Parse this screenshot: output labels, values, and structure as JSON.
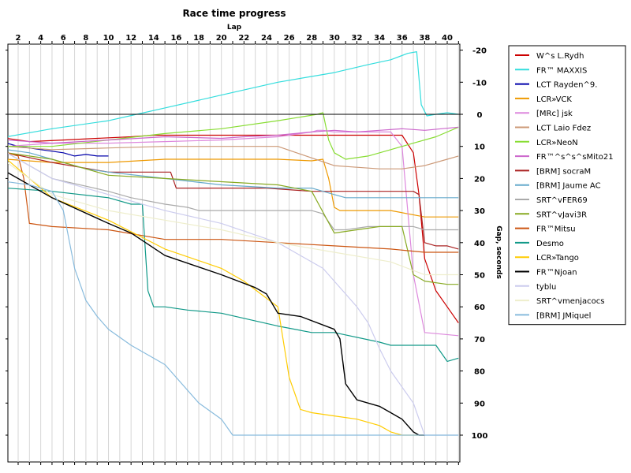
{
  "chart_data": {
    "type": "line",
    "title": "Race time progress",
    "xlabel": "Lap",
    "ylabel": "Gap, seconds",
    "xlim": [
      1,
      41
    ],
    "ylim": [
      -22,
      105
    ],
    "x_ticks": [
      2,
      4,
      6,
      8,
      10,
      12,
      14,
      16,
      18,
      20,
      22,
      24,
      26,
      28,
      30,
      32,
      34,
      36,
      38,
      40
    ],
    "y_ticks": [
      -20,
      -10,
      0,
      10,
      20,
      30,
      40,
      50,
      60,
      70,
      80,
      90,
      100
    ],
    "y_tick_labels": [
      "-20",
      "-10",
      "0",
      "10",
      "20",
      "30",
      "40",
      "50",
      "60",
      "70",
      "80",
      "90",
      "100"
    ],
    "y_axis_inverted": true,
    "x_axis_position": "top",
    "y_axis_position": "right",
    "grid": true,
    "legend_position": "right",
    "series": [
      {
        "name": "W^s L.Rydh",
        "color": "#cc0000",
        "x": [
          1,
          3,
          6,
          9,
          12,
          14,
          15,
          16,
          18,
          20,
          24,
          28,
          32,
          36,
          37,
          37.5,
          38,
          39,
          40,
          41
        ],
        "y": [
          7.5,
          8.5,
          8,
          7.5,
          7,
          6.5,
          6.5,
          6.5,
          6.5,
          6.5,
          6.5,
          6.5,
          6.5,
          6.5,
          12,
          25,
          45,
          55,
          60,
          65
        ]
      },
      {
        "name": "FR™ MAXXIS",
        "color": "#33dddd",
        "x": [
          1,
          5,
          10,
          12.5,
          15,
          20,
          25,
          30,
          33,
          35,
          36.5,
          37.3,
          37.7,
          38.2,
          39,
          40,
          41
        ],
        "y": [
          7,
          4.5,
          2,
          0,
          -2,
          -6,
          -10,
          -13,
          -15.5,
          -17,
          -19,
          -19.5,
          -3,
          0.5,
          0,
          -0.5,
          0
        ]
      },
      {
        "name": "LCT Rayden^9.",
        "color": "#0000aa",
        "x": [
          1,
          2,
          3,
          4,
          5,
          6,
          7,
          8,
          9,
          10
        ],
        "y": [
          9,
          10,
          10.5,
          11,
          11.5,
          12,
          13,
          12.5,
          13,
          13
        ]
      },
      {
        "name": "LCR»VCK",
        "color": "#ee9900",
        "x": [
          1,
          5,
          10,
          15,
          20,
          25,
          28,
          29,
          29.5,
          30,
          30.5,
          31,
          35,
          38,
          41
        ],
        "y": [
          14,
          15,
          15,
          14,
          14,
          14,
          14.5,
          14,
          20,
          29,
          30,
          30,
          30,
          32,
          32
        ]
      },
      {
        "name": "[MRc] jsk",
        "color": "#dd88dd",
        "x": [
          1,
          5,
          10,
          15,
          20,
          25,
          28,
          28.5,
          29,
          30,
          35,
          36,
          37,
          38,
          41
        ],
        "y": [
          10,
          9,
          9,
          8.5,
          8,
          7,
          5.5,
          5,
          5,
          5.5,
          5.5,
          10,
          50,
          68,
          69
        ]
      },
      {
        "name": "LCT Laio Fdez",
        "color": "#cc9977",
        "x": [
          1,
          5,
          10,
          15,
          20,
          25,
          30,
          32,
          34,
          36,
          38,
          40,
          41
        ],
        "y": [
          10,
          11,
          10.5,
          10,
          10,
          10,
          16,
          16.5,
          17,
          17,
          16,
          14,
          13
        ]
      },
      {
        "name": "LCR»NeoN",
        "color": "#88dd33",
        "x": [
          1,
          5,
          10,
          15,
          20,
          25,
          28.5,
          29,
          29.5,
          30,
          31,
          33,
          35,
          37,
          39,
          41
        ],
        "y": [
          10,
          10,
          8,
          6,
          4.5,
          2,
          0,
          -0.5,
          8,
          12,
          14,
          13,
          11,
          9,
          7,
          4
        ]
      },
      {
        "name": "FR™^s^s^sMito21",
        "color": "#cc66cc",
        "x": [
          1,
          5,
          10,
          15,
          20,
          22,
          25,
          28,
          30,
          32,
          34,
          36,
          38,
          41
        ],
        "y": [
          8,
          9,
          8,
          7,
          7.5,
          7,
          6.5,
          5.5,
          5,
          5.5,
          5,
          4.5,
          5,
          4
        ]
      },
      {
        "name": "[BRM] socraM",
        "color": "#aa2222",
        "x": [
          1,
          5,
          10,
          12,
          14,
          15,
          15.5,
          16,
          18,
          20,
          24,
          28,
          30,
          33,
          36,
          37,
          37.5,
          38,
          39,
          40,
          41
        ],
        "y": [
          12,
          15,
          18,
          18,
          18,
          18,
          18,
          23,
          23,
          23,
          23,
          24,
          24,
          24,
          24,
          24,
          25,
          40,
          41,
          41,
          42
        ]
      },
      {
        "name": "[BRM] Jaume AC",
        "color": "#66aacc",
        "x": [
          1,
          3,
          5,
          8,
          10,
          15,
          20,
          25,
          28,
          29,
          30,
          31,
          33,
          35,
          37,
          39,
          41
        ],
        "y": [
          11,
          12,
          14,
          17,
          18,
          20,
          22,
          23,
          23,
          24,
          25,
          26,
          26,
          26,
          26,
          26,
          26
        ]
      },
      {
        "name": "SRT^vFER69",
        "color": "#aaaaaa",
        "x": [
          1,
          5,
          10,
          12,
          15,
          17,
          18,
          20,
          25,
          28,
          29,
          30,
          31,
          33,
          35,
          36,
          37,
          38,
          41
        ],
        "y": [
          12,
          20,
          24,
          26,
          28,
          29,
          30,
          30,
          30,
          30,
          31,
          36,
          36,
          35,
          35,
          35,
          35,
          36,
          36
        ]
      },
      {
        "name": "SRT^vJavi3R",
        "color": "#88aa22",
        "x": [
          1,
          5,
          10,
          15,
          20,
          25,
          28,
          30,
          32,
          34,
          35,
          36,
          37,
          38,
          40,
          41
        ],
        "y": [
          12,
          14,
          19,
          20,
          21,
          22,
          24,
          37,
          36,
          35,
          35,
          35,
          50,
          52,
          53,
          53
        ]
      },
      {
        "name": "FR™Mitsu",
        "color": "#cc5511",
        "x": [
          1,
          2,
          2.5,
          3,
          5,
          10,
          15,
          20,
          25,
          30,
          35,
          38,
          41
        ],
        "y": [
          12,
          13,
          20,
          34,
          35,
          36,
          39,
          39,
          40,
          41,
          42,
          43,
          43
        ]
      },
      {
        "name": "Desmo",
        "color": "#119988",
        "x": [
          1,
          5,
          10,
          12,
          13,
          13.5,
          14,
          15,
          17,
          20,
          25,
          28,
          30,
          34,
          35,
          36,
          37,
          38,
          39,
          40,
          41
        ],
        "y": [
          23,
          24,
          26,
          28,
          28,
          55,
          60,
          60,
          61,
          62,
          66,
          68,
          68,
          71,
          72,
          72,
          72,
          72,
          72,
          77,
          76
        ]
      },
      {
        "name": "LCR»Tango",
        "color": "#ffcc00",
        "x": [
          1,
          5,
          10,
          15,
          20,
          22,
          25,
          26,
          27,
          28,
          30,
          32,
          34,
          35,
          36,
          37,
          38
        ],
        "y": [
          14,
          26,
          33,
          42,
          48,
          52,
          60,
          82,
          92,
          93,
          94,
          95,
          97,
          99,
          100,
          100,
          100
        ]
      },
      {
        "name": "FR™Njoan",
        "color": "#000000",
        "x": [
          1,
          5,
          10,
          12,
          15,
          20,
          23,
          24,
          25,
          27,
          30,
          30.5,
          31,
          32,
          34,
          35,
          36,
          37,
          37.5,
          38
        ],
        "y": [
          18,
          26,
          34,
          37,
          44,
          50,
          54,
          56,
          62,
          63,
          67,
          70,
          84,
          89,
          91,
          93,
          95,
          99,
          100,
          100
        ]
      },
      {
        "name": "tyblu",
        "color": "#ccccee",
        "x": [
          1,
          5,
          10,
          15,
          20,
          25,
          27,
          29,
          30,
          31,
          32,
          33,
          34,
          35,
          36,
          37,
          38,
          41
        ],
        "y": [
          12,
          20,
          25,
          30,
          34,
          40,
          44,
          48,
          52,
          56,
          60,
          65,
          73,
          80,
          85,
          90,
          100,
          100
        ]
      },
      {
        "name": "SRT^vmenjacocs",
        "color": "#eeeecc",
        "x": [
          1,
          3,
          5,
          10,
          15,
          20,
          25,
          30,
          35,
          38,
          41
        ],
        "y": [
          15,
          20,
          25,
          30,
          33,
          36,
          40,
          43,
          46,
          50,
          50
        ]
      },
      {
        "name": "[BRM] JMiquel",
        "color": "#88bbdd",
        "x": [
          1,
          3,
          5,
          6,
          7,
          8,
          9,
          10,
          12,
          15,
          18,
          20,
          21,
          25,
          30,
          35,
          41
        ],
        "y": [
          21,
          22,
          24,
          30,
          48,
          58,
          63,
          67,
          72,
          78,
          90,
          95,
          100,
          100,
          100,
          100,
          100
        ]
      }
    ]
  }
}
